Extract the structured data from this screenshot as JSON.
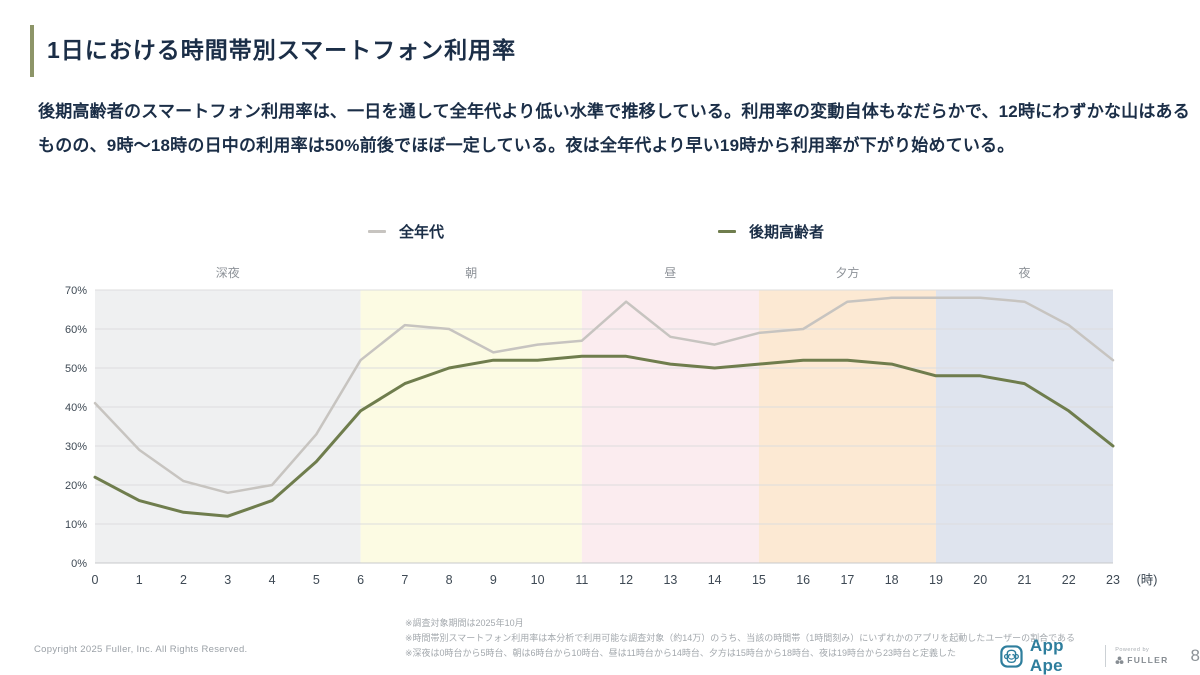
{
  "header": {
    "title": "1日における時間帯別スマートフォン利用率"
  },
  "summary": {
    "lines": [
      "後期高齢者のスマートフォン利用率は、一日を通して全年代より低い水準で推移している。利用率の変動自体もなだらかで、12時にわずかな山はある",
      "ものの、9時〜18時の日中の利用率は50%前後でほぼ一定している。夜は全年代より早い19時から利用率が下がり始めている。"
    ]
  },
  "legend": {
    "items": [
      {
        "id": "all-ages",
        "label": "全年代",
        "color": "#c7c4c0"
      },
      {
        "id": "late-elderly",
        "label": "後期高齢者",
        "color": "#6f7d4d"
      }
    ]
  },
  "chart_data": {
    "type": "line",
    "x": [
      0,
      1,
      2,
      3,
      4,
      5,
      6,
      7,
      8,
      9,
      10,
      11,
      12,
      13,
      14,
      15,
      16,
      17,
      18,
      19,
      20,
      21,
      22,
      23
    ],
    "x_unit": "(時)",
    "ylim": [
      0,
      70
    ],
    "ytick_step": 10,
    "ytick_suffix": "%",
    "grid": true,
    "legend_position": "top",
    "band_label_color": "#8d9298",
    "axis_label_color": "#3e4954",
    "bands": [
      {
        "id": "late-night",
        "label": "深夜",
        "start": 0,
        "end": 6,
        "color": "#eff0f1"
      },
      {
        "id": "morning",
        "label": "朝",
        "start": 6,
        "end": 11,
        "color": "#fcfbe3"
      },
      {
        "id": "noon",
        "label": "昼",
        "start": 11,
        "end": 15,
        "color": "#fbecef"
      },
      {
        "id": "evening",
        "label": "夕方",
        "start": 15,
        "end": 19,
        "color": "#fce9d3"
      },
      {
        "id": "night",
        "label": "夜",
        "start": 19,
        "end": 23,
        "color": "#dfe4ee"
      }
    ],
    "series": [
      {
        "id": "all-ages",
        "name": "全年代",
        "color": "#c7c4c0",
        "width": 2.5,
        "values": [
          41,
          29,
          21,
          18,
          20,
          33,
          52,
          61,
          60,
          54,
          56,
          57,
          67,
          58,
          56,
          59,
          60,
          67,
          68,
          68,
          68,
          67,
          61,
          52
        ]
      },
      {
        "id": "late-elderly",
        "name": "後期高齢者",
        "color": "#6f7d4d",
        "width": 3,
        "values": [
          22,
          16,
          13,
          12,
          16,
          26,
          39,
          46,
          50,
          52,
          52,
          53,
          53,
          51,
          50,
          51,
          52,
          52,
          51,
          48,
          48,
          46,
          39,
          30
        ]
      }
    ]
  },
  "notes": {
    "lines": [
      "※調査対象期間は2025年10月",
      "※時間帯別スマートフォン利用率は本分析で利用可能な調査対象（約14万）のうち、当該の時間帯（1時間刻み）にいずれかのアプリを起動したユーザーの割合である",
      "※深夜は0時台から5時台、朝は6時台から10時台、昼は11時台から14時台、夕方は15時台から18時台、夜は19時台から23時台と定義した"
    ]
  },
  "footer": {
    "copyright": "Copyright 2025 Fuller, Inc. All Rights Reserved.",
    "logo_text": "App Ape",
    "powered_by": "Powered by",
    "brand": "FULLER",
    "page_number": "8"
  },
  "colors": {
    "title_text": "#1b2e47",
    "accent_bar": "#8d9568",
    "appape_blue": "#2e7e9d",
    "note_gray": "#a3a8ad"
  }
}
